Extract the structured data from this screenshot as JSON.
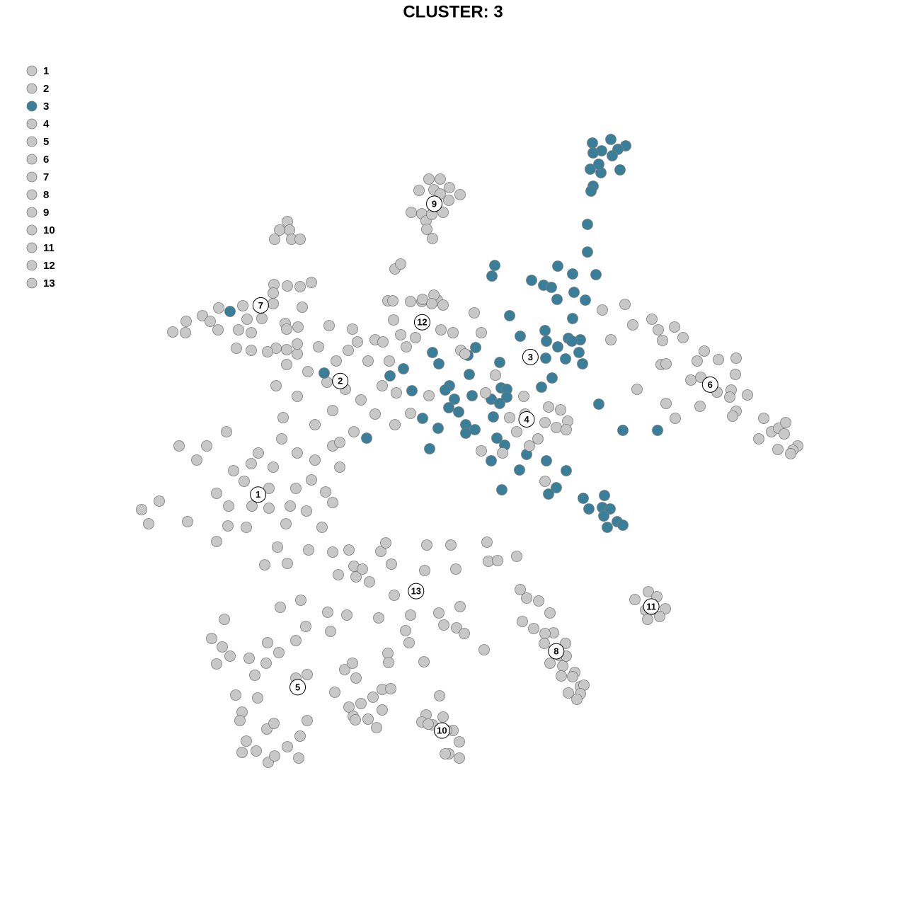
{
  "chart_data": {
    "type": "scatter",
    "title": "CLUSTER: 3",
    "xlim": [
      0,
      128
    ],
    "ylim": [
      0,
      128
    ],
    "series": [
      {
        "name": "1",
        "color": "#c8c8c8",
        "x": [
          20,
          21,
          22.5,
          25.3,
          26.5,
          27.8,
          29.2,
          30.6,
          30.6,
          32.2,
          32.3,
          33,
          34.5,
          34.8,
          35.6,
          37.4,
          38,
          38.6,
          39.2,
          40.6,
          40.4,
          41,
          42,
          43.3,
          44,
          44.5,
          45.5,
          46,
          43.6,
          39.8,
          36.5,
          32,
          35.5,
          41.8,
          38,
          47,
          48,
          47
        ],
        "y": [
          56,
          54,
          57.2,
          65,
          54.3,
          63,
          65,
          58.3,
          51.5,
          53.7,
          56.5,
          61.5,
          60,
          53.5,
          56.5,
          48.2,
          56.2,
          62,
          50.7,
          48.4,
          54,
          56.5,
          64,
          55.8,
          60.2,
          63,
          53.5,
          58.5,
          50.3,
          66,
          64,
          67,
          62.5,
          59,
          59,
          65,
          62,
          57
        ]
      },
      {
        "name": "2",
        "color": "#c8c8c8",
        "x": [
          42,
          43.5,
          45,
          46.2,
          47.5,
          48.8,
          49.2,
          50.5,
          51,
          52,
          53,
          54,
          55,
          55.8,
          47,
          44.5,
          42,
          40,
          39,
          40.5,
          46.5,
          49.8,
          53,
          56,
          50,
          48
        ],
        "y": [
          78,
          75.5,
          79,
          74,
          77,
          73,
          78.5,
          79.7,
          71.5,
          77,
          69.5,
          73.5,
          77,
          68,
          70,
          68,
          72,
          69,
          73.5,
          76.5,
          82,
          81.5,
          80,
          72.5,
          67,
          65.5
        ]
      },
      {
        "name": "3",
        "color": "#3a7f9a",
        "x": [
          83.7,
          86.3,
          88.4,
          87.3,
          85,
          83.8,
          86.5,
          83.4,
          84.9,
          87.6,
          84.6,
          83.8,
          83.5,
          83,
          83,
          69.9,
          69.5,
          78.8,
          80.9,
          84.2,
          75.1,
          76.8,
          77.9,
          81.1,
          78.7,
          82.7,
          72,
          80.9,
          73.5,
          77,
          77.2,
          80.3,
          82,
          78.8,
          80.8,
          81.8,
          79.9,
          77.1,
          82.3,
          61.1,
          62,
          66.1,
          67.2,
          70.6,
          66.3,
          57,
          55.1,
          78,
          76.5,
          70.8,
          71.6,
          71.6,
          69.4,
          70.6,
          63.5,
          62.9,
          64.2,
          66.7,
          63.4,
          64.8,
          59.7,
          58.2,
          65.8,
          67.1,
          65.8,
          61.9,
          69.7,
          84.6,
          88,
          92.9,
          51.8,
          60.7,
          70.2,
          71.3,
          74.4,
          69.4,
          77.2,
          73.4,
          80,
          70.9,
          78.6,
          77.5,
          82.4,
          85.4,
          83.2,
          85.1,
          86.2,
          85.3,
          87.2,
          88,
          85.8,
          32.5,
          45.8
        ],
        "y": [
          107.8,
          108.3,
          107.4,
          106.9,
          106.7,
          106.4,
          106,
          104.1,
          103.6,
          104,
          104.8,
          101.7,
          101,
          96.3,
          92.4,
          90.5,
          89,
          90.4,
          89.3,
          89.2,
          88.4,
          87.7,
          87.4,
          86.7,
          85.7,
          85.6,
          83.4,
          83,
          80.5,
          81.3,
          79.8,
          80.2,
          80,
          79,
          79.8,
          78.2,
          77.3,
          77.4,
          76.6,
          78.2,
          76.6,
          77.8,
          78.9,
          76.8,
          75.1,
          75.9,
          74.9,
          74.6,
          73.3,
          73.2,
          73,
          71.9,
          71.6,
          71,
          73.5,
          72.9,
          71.6,
          72.1,
          70.4,
          69.8,
          68.9,
          72.8,
          68,
          67.3,
          66.8,
          67.5,
          69.1,
          70.9,
          67.2,
          67.2,
          66.1,
          64.6,
          66.1,
          65.1,
          63.8,
          62.9,
          62.9,
          61.6,
          61.5,
          58.8,
          59.1,
          58.2,
          57.6,
          58,
          56.1,
          56.3,
          56.1,
          55.1,
          54.3,
          53.8,
          53.5,
          84,
          75.3
        ]
      },
      {
        "name": "4",
        "color": "#c8c8c8",
        "x": [
          68,
          68.6,
          72,
          74.2,
          77,
          79.2,
          80.2,
          78.6,
          74.8,
          73,
          71,
          68,
          77,
          74,
          76,
          80,
          77.5,
          70
        ],
        "y": [
          81,
          72.5,
          69,
          69.5,
          68.3,
          70.1,
          68.5,
          67.6,
          65,
          67,
          64,
          64.3,
          60,
          72,
          66,
          67.3,
          70.5,
          75
        ]
      },
      {
        "name": "5",
        "color": "#c8c8c8",
        "x": [
          31.7,
          29.9,
          31.4,
          30.6,
          32.5,
          35.2,
          37.6,
          37.8,
          39.4,
          36,
          41.8,
          43.4,
          33.3,
          36.4,
          34.2,
          33.9,
          37.7,
          38.7,
          34.8,
          34.2,
          36.2,
          37.9,
          38.8,
          40.6,
          42.2,
          42.4,
          43.4,
          41.8,
          43.2,
          39.6,
          42.5,
          46.3,
          46.7,
          49,
          48.7,
          49.8,
          47.3,
          50.3,
          49.3,
          51,
          49.9,
          52,
          53.2,
          54,
          52.7,
          54,
          55.2,
          50.2
        ],
        "y": [
          40.5,
          37.8,
          36.6,
          34.2,
          35.3,
          35,
          34.3,
          37.2,
          35.8,
          32.6,
          32.2,
          32.7,
          29.8,
          29.4,
          27.4,
          26.2,
          25,
          25.8,
          23.3,
          21.7,
          21.9,
          20.3,
          21.2,
          22.5,
          20.9,
          24,
          26.2,
          37.5,
          39.5,
          42.2,
          43.2,
          41.5,
          38.8,
          41.1,
          33.4,
          34.3,
          30.2,
          32.2,
          28.1,
          28.6,
          26.8,
          26.4,
          25.2,
          27.7,
          29.5,
          30.6,
          30.7,
          26.3
        ]
      },
      {
        "name": "6",
        "color": "#c8c8c8",
        "x": [
          88.3,
          89.4,
          92.1,
          93,
          95.3,
          96.5,
          93.6,
          93.4,
          94.1,
          99.5,
          98.5,
          101.5,
          104,
          103.9,
          97.6,
          99,
          101.3,
          103.3,
          105.6,
          103.1,
          104,
          103.5,
          98.9,
          95.4,
          94.1,
          90,
          107.9,
          109,
          107.2,
          110,
          111,
          110.8,
          112.7,
          112,
          109.9,
          111.7,
          86.3,
          85.1
        ],
        "y": [
          85,
          82.1,
          82.9,
          81.4,
          81.8,
          80.3,
          79.9,
          76.5,
          76.6,
          78.4,
          77,
          77.2,
          77.4,
          75.1,
          74.3,
          74.7,
          72.6,
          72.9,
          72.2,
          71.9,
          69.9,
          69.2,
          70.6,
          68.9,
          71,
          73,
          68.9,
          67,
          66,
          67.5,
          68.3,
          66.7,
          65,
          64.4,
          64.5,
          63.9,
          80,
          84.2
        ]
      },
      {
        "name": "7",
        "color": "#c8c8c8",
        "x": [
          24.4,
          26.2,
          26.3,
          28.6,
          29.7,
          30.9,
          30.8,
          33.7,
          34.3,
          34.9,
          35.5,
          33.4,
          38.7,
          38.6,
          38.6,
          40.6,
          42.4,
          44,
          42.7,
          40.3,
          42.1,
          40.5,
          39,
          40.5,
          42,
          37.8,
          40.6,
          39.5,
          40.9,
          38.8,
          41.2,
          42.4,
          37,
          35.5
        ],
        "y": [
          81.1,
          81,
          82.6,
          83.4,
          82.6,
          84.5,
          81.4,
          81.4,
          84.8,
          82.9,
          81,
          78.8,
          87.8,
          86.6,
          85.1,
          87.6,
          87.5,
          88.1,
          84.6,
          82.3,
          81.8,
          81.5,
          78.8,
          78.6,
          79.4,
          78.3,
          96.7,
          95.5,
          95.5,
          94.2,
          94.2,
          94.2,
          83,
          78.5
        ]
      },
      {
        "name": "8",
        "color": "#c8c8c8",
        "x": [
          73.5,
          74.4,
          76.1,
          77.7,
          73.8,
          75.4,
          76.9,
          78.2,
          79.9,
          79,
          77.7,
          79.5,
          80,
          81.2,
          79.3,
          80.9,
          82,
          82.5,
          82,
          80.3,
          81.5,
          77
        ],
        "y": [
          44.7,
          43.5,
          43.1,
          41.4,
          40.2,
          39.2,
          37.1,
          38.6,
          37.1,
          35.4,
          34.3,
          33.9,
          35.3,
          33,
          32.5,
          32.4,
          31,
          31.2,
          30,
          30.1,
          29.2,
          38.5
        ]
      },
      {
        "name": "9",
        "color": "#c8c8c8",
        "x": [
          60.6,
          62.2,
          61.3,
          59.2,
          62.2,
          63.5,
          65,
          63.4,
          58.1,
          59.6,
          62.6,
          60.2,
          60.3,
          61.1,
          61
        ],
        "y": [
          102.7,
          102.7,
          101.2,
          101.1,
          100.6,
          101.5,
          100.5,
          99.7,
          98,
          97.8,
          98,
          96.8,
          95.6,
          94.3,
          97.7
        ]
      },
      {
        "name": "10",
        "color": "#c8c8c8",
        "x": [
          62.1,
          60.2,
          62.6,
          59.6,
          61.1,
          64,
          63.1,
          64.9,
          63.4,
          62.9,
          64.9,
          60.5
        ],
        "y": [
          29.7,
          27,
          26.7,
          26,
          25.6,
          24.8,
          24.8,
          23.2,
          21.5,
          21.5,
          20.9,
          25.7
        ]
      },
      {
        "name": "11",
        "color": "#c8c8c8",
        "x": [
          91.6,
          89.7,
          92.8,
          91.2,
          94,
          91.5,
          93.2,
          92.1
        ],
        "y": [
          44.4,
          43.3,
          43.7,
          41.8,
          42,
          40.5,
          40.9,
          41.9
        ]
      },
      {
        "name": "12",
        "color": "#c8c8c8",
        "x": [
          55.8,
          56.6,
          59.6,
          61.8,
          62.6,
          54.8,
          55.5,
          58,
          59.7,
          61.3,
          61,
          67,
          55.6,
          56.6,
          57.4,
          58.7,
          62.3,
          64,
          65.1,
          65.7,
          54.1,
          60.6,
          58
        ],
        "y": [
          90,
          90.7,
          85.4,
          85.6,
          84.9,
          85.5,
          85.5,
          85.4,
          85.7,
          86.3,
          85.1,
          83.8,
          82.8,
          80.7,
          79,
          80.3,
          81.4,
          81,
          78.5,
          78,
          79.7,
          72.1,
          69.6
        ]
      },
      {
        "name": "13",
        "color": "#c8c8c8",
        "x": [
          47,
          47.8,
          49.3,
          50,
          50.3,
          52.2,
          51.2,
          53.8,
          55.3,
          54.5,
          55.7,
          58,
          53.5,
          54.8,
          54.9,
          57.3,
          57.8,
          60.3,
          60,
          63.7,
          64.4,
          69,
          70.3,
          73,
          68.8,
          62.7,
          64.5,
          65.6,
          68.4,
          59.9,
          62,
          65
        ],
        "y": [
          50,
          46.8,
          50.3,
          48,
          46.5,
          45.8,
          47.6,
          50.1,
          48.3,
          51.3,
          43.9,
          41.1,
          40.7,
          35.7,
          34.4,
          38.9,
          37.2,
          51,
          47.4,
          51,
          47.6,
          48.7,
          48.8,
          49.4,
          51.4,
          39.7,
          39.3,
          38.5,
          36.2,
          34.5,
          41.4,
          42.3
        ]
      }
    ]
  }
}
